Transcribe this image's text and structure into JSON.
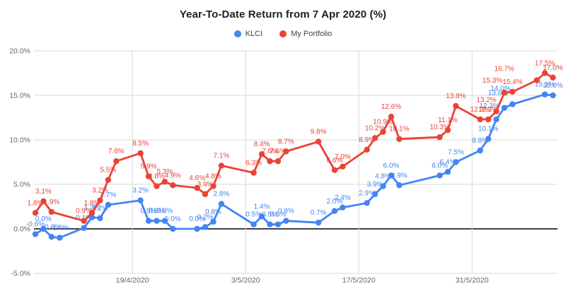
{
  "chart_data": {
    "type": "line",
    "title": "Year-To-Date Return from 7 Apr 2020 (%)",
    "legend_position": "top-center",
    "grid": true,
    "ylim": [
      -5,
      20
    ],
    "ytick_step": 5,
    "ytick_format": "percent_1dp",
    "ytick_labels": [
      "20.0%",
      "15.0%",
      "10.0%",
      "5.0%",
      "0.0%",
      "-5.0%"
    ],
    "xlabel": "",
    "ylabel": "",
    "x_gridlines": [
      {
        "date": "2020-04-19",
        "label": "19/4/2020"
      },
      {
        "date": "2020-05-03",
        "label": "3/5/2020"
      },
      {
        "date": "2020-05-17",
        "label": "17/5/2020"
      },
      {
        "date": "2020-05-31",
        "label": "31/5/2020"
      }
    ],
    "x_range": {
      "start": "2020-04-07",
      "end": "2020-06-10"
    },
    "colors": {
      "klci": "#4285f4",
      "portfolio": "#ea4335",
      "gridline": "#dadada",
      "zero_line": "#000000",
      "axis_text": "#666666",
      "title_text": "#1f1f1f"
    },
    "series": [
      {
        "name": "KLCI",
        "color": "#4285f4",
        "points": [
          [
            "2020-04-07",
            -0.6
          ],
          [
            "2020-04-08",
            0.0
          ],
          [
            "2020-04-09",
            -0.9
          ],
          [
            "2020-04-10",
            -1.0
          ],
          [
            "2020-04-13",
            0.1
          ],
          [
            "2020-04-14",
            1.3
          ],
          [
            "2020-04-15",
            1.2
          ],
          [
            "2020-04-16",
            2.7
          ],
          [
            "2020-04-20",
            3.2
          ],
          [
            "2020-04-21",
            0.9
          ],
          [
            "2020-04-22",
            0.9
          ],
          [
            "2020-04-23",
            0.9
          ],
          [
            "2020-04-24",
            0.0
          ],
          [
            "2020-04-27",
            0.0
          ],
          [
            "2020-04-28",
            0.2
          ],
          [
            "2020-04-29",
            0.8
          ],
          [
            "2020-04-30",
            2.8
          ],
          [
            "2020-05-04",
            0.5
          ],
          [
            "2020-05-05",
            1.4
          ],
          [
            "2020-05-06",
            0.5
          ],
          [
            "2020-05-07",
            0.5
          ],
          [
            "2020-05-08",
            0.9
          ],
          [
            "2020-05-12",
            0.7
          ],
          [
            "2020-05-14",
            2.0
          ],
          [
            "2020-05-15",
            2.4
          ],
          [
            "2020-05-18",
            2.9
          ],
          [
            "2020-05-19",
            3.9
          ],
          [
            "2020-05-20",
            4.8
          ],
          [
            "2020-05-21",
            6.0
          ],
          [
            "2020-05-22",
            4.9
          ],
          [
            "2020-05-27",
            6.0
          ],
          [
            "2020-05-28",
            6.4
          ],
          [
            "2020-05-29",
            7.5
          ],
          [
            "2020-06-01",
            8.8
          ],
          [
            "2020-06-02",
            10.1
          ],
          [
            "2020-06-03",
            12.3
          ],
          [
            "2020-06-04",
            13.6
          ],
          [
            "2020-06-05",
            14.0
          ],
          [
            "2020-06-09",
            15.1
          ],
          [
            "2020-06-10",
            15.0
          ]
        ],
        "label_offsets": {
          "2020-06-03": [
            -10,
            -5
          ],
          "2020-06-04": [
            -9,
            -7
          ],
          "2020-06-05": [
            -17,
            -8
          ]
        }
      },
      {
        "name": "My Portfolio",
        "color": "#ea4335",
        "points": [
          [
            "2020-04-07",
            1.8
          ],
          [
            "2020-04-08",
            3.1
          ],
          [
            "2020-04-09",
            1.9
          ],
          [
            "2020-04-13",
            0.9
          ],
          [
            "2020-04-14",
            1.8
          ],
          [
            "2020-04-15",
            3.2
          ],
          [
            "2020-04-16",
            5.5
          ],
          [
            "2020-04-17",
            7.6
          ],
          [
            "2020-04-20",
            8.5
          ],
          [
            "2020-04-21",
            5.9
          ],
          [
            "2020-04-22",
            4.8
          ],
          [
            "2020-04-23",
            5.3
          ],
          [
            "2020-04-24",
            4.9
          ],
          [
            "2020-04-27",
            4.6
          ],
          [
            "2020-04-28",
            3.9
          ],
          [
            "2020-04-29",
            4.8
          ],
          [
            "2020-04-30",
            7.1
          ],
          [
            "2020-05-04",
            6.3
          ],
          [
            "2020-05-05",
            8.4
          ],
          [
            "2020-05-06",
            7.6
          ],
          [
            "2020-05-07",
            7.6
          ],
          [
            "2020-05-08",
            8.7
          ],
          [
            "2020-05-12",
            9.8
          ],
          [
            "2020-05-14",
            6.6
          ],
          [
            "2020-05-15",
            7.0
          ],
          [
            "2020-05-18",
            8.9
          ],
          [
            "2020-05-19",
            10.2
          ],
          [
            "2020-05-20",
            10.9
          ],
          [
            "2020-05-21",
            12.6
          ],
          [
            "2020-05-22",
            10.1
          ],
          [
            "2020-05-27",
            10.3
          ],
          [
            "2020-05-28",
            11.1
          ],
          [
            "2020-05-29",
            13.8
          ],
          [
            "2020-06-01",
            12.3
          ],
          [
            "2020-06-02",
            12.3
          ],
          [
            "2020-06-03",
            13.2
          ],
          [
            "2020-06-04",
            15.3
          ],
          [
            "2020-06-05",
            15.4
          ],
          [
            "2020-06-08",
            16.7
          ],
          [
            "2020-06-09",
            17.5
          ],
          [
            "2020-06-10",
            17.0
          ]
        ],
        "label_offsets": {
          "2020-06-03": [
            -14,
            -2
          ],
          "2020-06-04": [
            -17,
            -3
          ],
          "2020-06-08": [
            -46,
            -2
          ]
        }
      }
    ]
  }
}
